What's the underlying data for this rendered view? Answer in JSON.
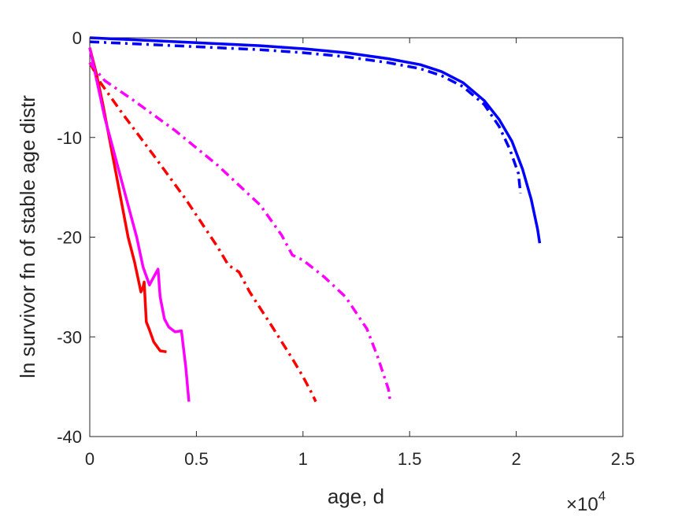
{
  "chart_data": {
    "type": "line",
    "title": "",
    "xlabel": "age, d",
    "ylabel": "ln survivor fn of stable age distr",
    "x_exponent_label": {
      "base": "×10",
      "power": "4"
    },
    "xlim": [
      0,
      25000
    ],
    "ylim": [
      -40,
      0
    ],
    "xticks": [
      0,
      5000,
      10000,
      15000,
      20000,
      25000
    ],
    "xtick_labels": [
      "0",
      "0.5",
      "1",
      "1.5",
      "2",
      "2.5"
    ],
    "yticks": [
      -40,
      -30,
      -20,
      -10,
      0
    ],
    "ytick_labels": [
      "-40",
      "-30",
      "-20",
      "-10",
      "0"
    ],
    "grid": false,
    "legend": "none",
    "series": [
      {
        "color": "#0000ff",
        "style": "solid",
        "x": [
          0,
          2000,
          5000,
          8000,
          10000,
          12000,
          14000,
          15500,
          16500,
          17500,
          18500,
          19200,
          19800,
          20300,
          20700,
          21000,
          21100
        ],
        "y": [
          0,
          -0.2,
          -0.5,
          -0.8,
          -1.1,
          -1.5,
          -2.1,
          -2.7,
          -3.4,
          -4.5,
          -6.3,
          -8.2,
          -10.4,
          -13.2,
          -16.2,
          -19.2,
          -20.6
        ]
      },
      {
        "color": "#0000ff",
        "style": "dashdot",
        "x": [
          0,
          2000,
          5000,
          8000,
          10000,
          12000,
          14000,
          15500,
          16500,
          17500,
          18500,
          19200,
          19700,
          20100,
          20200
        ],
        "y": [
          -0.4,
          -0.6,
          -0.9,
          -1.2,
          -1.5,
          -1.9,
          -2.5,
          -3.1,
          -3.8,
          -4.9,
          -6.7,
          -8.9,
          -11.2,
          -13.6,
          -15.6
        ]
      },
      {
        "color": "#ff0000",
        "style": "solid",
        "x": [
          0,
          300,
          600,
          1000,
          1400,
          1800,
          2100,
          2300,
          2400,
          2500,
          2550,
          2650,
          2800,
          3000,
          3300,
          3600
        ],
        "y": [
          -1,
          -3.5,
          -6.5,
          -11,
          -15.5,
          -20,
          -22.5,
          -24.5,
          -25.5,
          -25,
          -24.5,
          -28.5,
          -29.3,
          -30.5,
          -31.4,
          -31.5
        ]
      },
      {
        "color": "#ff00ff",
        "style": "solid",
        "x": [
          0,
          300,
          700,
          1200,
          1700,
          2200,
          2500,
          2800,
          3000,
          3200,
          3300,
          3500,
          3700,
          4000,
          4300,
          4500,
          4650
        ],
        "y": [
          -1,
          -4,
          -8,
          -12,
          -16,
          -20,
          -23,
          -24.8,
          -24,
          -23.2,
          -26,
          -28.2,
          -29,
          -29.5,
          -29.4,
          -33,
          -36.5
        ]
      },
      {
        "color": "#ff0000",
        "style": "dashdot",
        "x": [
          0,
          500,
          1500,
          3000,
          4500,
          6000,
          6500,
          7000,
          7500,
          8500,
          9500,
          10000,
          10400,
          10600
        ],
        "y": [
          -2.5,
          -4.5,
          -7.5,
          -11.8,
          -16.2,
          -21,
          -22.8,
          -23.5,
          -25.5,
          -28.8,
          -32.2,
          -34,
          -35.6,
          -36.5
        ]
      },
      {
        "color": "#ff00ff",
        "style": "dashdot",
        "x": [
          0,
          700,
          2000,
          4000,
          6000,
          8000,
          9000,
          9500,
          10000,
          11000,
          12000,
          13000,
          13500,
          14000,
          14100
        ],
        "y": [
          -2.5,
          -4.3,
          -6.2,
          -9.3,
          -12.8,
          -16.8,
          -19.8,
          -21.8,
          -22.3,
          -24,
          -26,
          -29.2,
          -32,
          -35.2,
          -36.6
        ]
      }
    ]
  }
}
